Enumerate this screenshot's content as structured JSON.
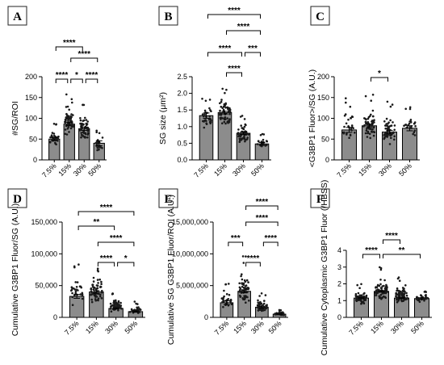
{
  "chart_data": [
    {
      "type": "bar",
      "panel": "A",
      "categories": [
        "7.5%",
        "15%",
        "30%",
        "50%"
      ],
      "ylabel": "#SG/ROI",
      "ylim": [
        0,
        200
      ],
      "yticks": [
        "0",
        "50",
        "100",
        "150",
        "200"
      ],
      "tick_values": [
        0,
        50,
        100,
        150,
        200
      ],
      "values": [
        50,
        86,
        75,
        40
      ],
      "errors": [
        4,
        4,
        4,
        6
      ],
      "points_min": [
        15,
        45,
        20,
        0
      ],
      "points_max": [
        90,
        160,
        135,
        75
      ],
      "points_n": [
        32,
        60,
        55,
        25
      ],
      "significance": [
        {
          "from": 0,
          "to": 2,
          "label": "****"
        },
        {
          "from": 1,
          "to": 3,
          "label": "****"
        },
        {
          "from": 0,
          "to": 1,
          "label": "****"
        },
        {
          "from": 1,
          "to": 2,
          "label": "*"
        },
        {
          "from": 2,
          "to": 3,
          "label": "****"
        }
      ]
    },
    {
      "type": "bar",
      "panel": "B",
      "categories": [
        "7.5%",
        "15%",
        "30%",
        "50%"
      ],
      "ylabel": "SG size (μm²)",
      "ylim": [
        0,
        2.5
      ],
      "yticks": [
        "0.0",
        "0.5",
        "1.0",
        "1.5",
        "2.0",
        "2.5"
      ],
      "tick_values": [
        0,
        0.5,
        1.0,
        1.5,
        2.0,
        2.5
      ],
      "values": [
        1.33,
        1.42,
        0.8,
        0.48
      ],
      "errors": [
        0.08,
        0.04,
        0.04,
        0.04
      ],
      "points_min": [
        0.5,
        0.6,
        0.3,
        0.25
      ],
      "points_max": [
        1.95,
        2.25,
        1.35,
        0.8
      ],
      "points_n": [
        30,
        60,
        55,
        22
      ],
      "significance": [
        {
          "from": 0,
          "to": 3,
          "label": "****"
        },
        {
          "from": 1,
          "to": 3,
          "label": "****"
        },
        {
          "from": 0,
          "to": 2,
          "label": "****"
        },
        {
          "from": 2,
          "to": 3,
          "label": "***"
        },
        {
          "from": 1,
          "to": 2,
          "label": "****"
        }
      ]
    },
    {
      "type": "bar",
      "panel": "C",
      "categories": [
        "7.5%",
        "15%",
        "30%",
        "50%"
      ],
      "ylabel": "<G3BP1 Fluor>/SG (A.U.)",
      "ylim": [
        0,
        200
      ],
      "yticks": [
        "0",
        "50",
        "100",
        "150",
        "200"
      ],
      "tick_values": [
        0,
        50,
        100,
        150,
        200
      ],
      "values": [
        72,
        82,
        67,
        76
      ],
      "errors": [
        6,
        4,
        4,
        6
      ],
      "points_min": [
        25,
        20,
        15,
        35
      ],
      "points_max": [
        150,
        160,
        140,
        135
      ],
      "points_n": [
        30,
        60,
        55,
        25
      ],
      "significance": [
        {
          "from": 1,
          "to": 2,
          "label": "*"
        }
      ]
    },
    {
      "type": "bar",
      "panel": "D",
      "categories": [
        "7.5%",
        "15%",
        "30%",
        "50%"
      ],
      "ylabel": "Cumulative G3BP1 Fluor/SG (A.U.)",
      "ylim": [
        0,
        150000
      ],
      "yticks": [
        "0",
        "50,000",
        "100,000",
        "150,000"
      ],
      "tick_values": [
        0,
        50000,
        100000,
        150000
      ],
      "values": [
        33000,
        40000,
        14000,
        9000
      ],
      "errors": [
        3000,
        2000,
        1000,
        1000
      ],
      "points_min": [
        5000,
        8000,
        2000,
        2000
      ],
      "points_max": [
        85000,
        85000,
        45000,
        25000
      ],
      "points_n": [
        30,
        60,
        55,
        25
      ],
      "significance": [
        {
          "from": 0,
          "to": 3,
          "label": "****"
        },
        {
          "from": 0,
          "to": 2,
          "label": "**"
        },
        {
          "from": 1,
          "to": 3,
          "label": "****"
        },
        {
          "from": 1,
          "to": 2,
          "label": "****"
        },
        {
          "from": 2,
          "to": 3,
          "label": "*"
        }
      ]
    },
    {
      "type": "bar",
      "panel": "E",
      "categories": [
        "7.5%",
        "15%",
        "30%",
        "50%"
      ],
      "ylabel": "Cumulative SG G3BP1 Fluor/ROI (A.U.)",
      "ylim": [
        0,
        15000000
      ],
      "yticks": [
        "0",
        "5,000,000",
        "10,000,000",
        "15,000,000"
      ],
      "tick_values": [
        0,
        5000000,
        10000000,
        15000000
      ],
      "values": [
        2300000,
        4100000,
        1600000,
        500000
      ],
      "errors": [
        300000,
        250000,
        150000,
        100000
      ],
      "points_min": [
        200000,
        1000000,
        200000,
        50000
      ],
      "points_max": [
        6000000,
        9800000,
        4000000,
        1200000
      ],
      "points_n": [
        28,
        60,
        55,
        25
      ],
      "significance": [
        {
          "from": 1,
          "to": 3,
          "label": "****"
        },
        {
          "from": 1,
          "to": 3,
          "label": "****"
        },
        {
          "from": 0,
          "to": 1,
          "label": "***"
        },
        {
          "from": 2,
          "to": 3,
          "label": "****"
        },
        {
          "from": 1,
          "to": 2,
          "label": "****"
        }
      ]
    },
    {
      "type": "bar",
      "panel": "F",
      "categories": [
        "7.5%",
        "15%",
        "30%",
        "50%"
      ],
      "ylabel": "Cumulative Cytoplasmic G3BP1 Fluor (/HBSS)",
      "ylim": [
        0,
        4
      ],
      "yticks": [
        "0",
        "1",
        "2",
        "3",
        "4"
      ],
      "tick_values": [
        0,
        1,
        2,
        3,
        4
      ],
      "values": [
        1.15,
        1.55,
        1.15,
        1.12
      ],
      "errors": [
        0.04,
        0.04,
        0.04,
        0.05
      ],
      "points_min": [
        0.5,
        0.6,
        0.4,
        0.7
      ],
      "points_max": [
        2.0,
        3.0,
        2.5,
        1.6
      ],
      "points_n": [
        60,
        70,
        70,
        30
      ],
      "significance": [
        {
          "from": 1,
          "to": 2,
          "label": "****"
        },
        {
          "from": 0,
          "to": 1,
          "label": "****"
        },
        {
          "from": 1,
          "to": 3,
          "label": "**"
        }
      ]
    }
  ]
}
